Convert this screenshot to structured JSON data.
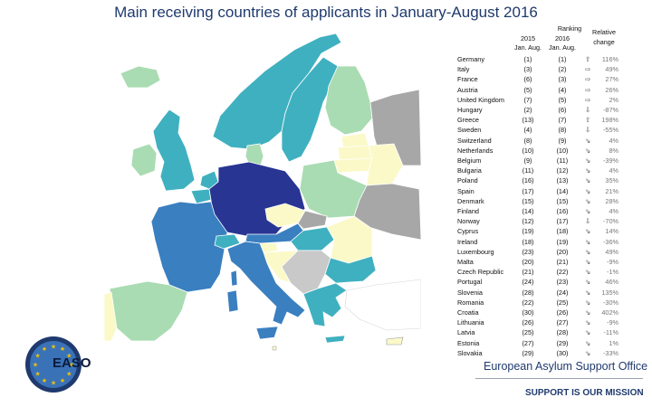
{
  "title": "Main receiving countries of applicants in January-August 2016",
  "ranking_header": {
    "ranking": "Ranking",
    "year_2015": "2015",
    "year_2016": "2016",
    "period_2015": "Jan. Aug.",
    "period_2016": "Jan. Aug.",
    "relative": "Relative",
    "change": "change"
  },
  "countries": [
    {
      "name": "Germany",
      "r2015": "(1)",
      "r2016": "(1)",
      "arrow": "⇧",
      "change": "116%"
    },
    {
      "name": "Italy",
      "r2015": "(3)",
      "r2016": "(2)",
      "arrow": "⇨",
      "change": "49%"
    },
    {
      "name": "France",
      "r2015": "(6)",
      "r2016": "(3)",
      "arrow": "⇨",
      "change": "27%"
    },
    {
      "name": "Austria",
      "r2015": "(5)",
      "r2016": "(4)",
      "arrow": "⇨",
      "change": "26%"
    },
    {
      "name": "United Kingdom",
      "r2015": "(7)",
      "r2016": "(5)",
      "arrow": "⇨",
      "change": "2%"
    },
    {
      "name": "Hungary",
      "r2015": "(2)",
      "r2016": "(6)",
      "arrow": "⇩",
      "change": "-87%"
    },
    {
      "name": "Greece",
      "r2015": "(13)",
      "r2016": "(7)",
      "arrow": "⇧",
      "change": "198%"
    },
    {
      "name": "Sweden",
      "r2015": "(4)",
      "r2016": "(8)",
      "arrow": "⇩",
      "change": "-55%"
    },
    {
      "name": "Switzerland",
      "r2015": "(8)",
      "r2016": "(9)",
      "arrow": "⇘",
      "change": "4%"
    },
    {
      "name": "Netherlands",
      "r2015": "(10)",
      "r2016": "(10)",
      "arrow": "⇘",
      "change": "8%"
    },
    {
      "name": "Belgium",
      "r2015": "(9)",
      "r2016": "(11)",
      "arrow": "⇘",
      "change": "-39%"
    },
    {
      "name": "Bulgaria",
      "r2015": "(11)",
      "r2016": "(12)",
      "arrow": "⇘",
      "change": "4%"
    },
    {
      "name": "Poland",
      "r2015": "(16)",
      "r2016": "(13)",
      "arrow": "⇘",
      "change": "35%"
    },
    {
      "name": "Spain",
      "r2015": "(17)",
      "r2016": "(14)",
      "arrow": "⇘",
      "change": "21%"
    },
    {
      "name": "Denmark",
      "r2015": "(15)",
      "r2016": "(15)",
      "arrow": "⇘",
      "change": "28%"
    },
    {
      "name": "Finland",
      "r2015": "(14)",
      "r2016": "(16)",
      "arrow": "⇘",
      "change": "4%"
    },
    {
      "name": "Norway",
      "r2015": "(12)",
      "r2016": "(17)",
      "arrow": "⇩",
      "change": "-70%"
    },
    {
      "name": "Cyprus",
      "r2015": "(19)",
      "r2016": "(18)",
      "arrow": "⇘",
      "change": "14%"
    },
    {
      "name": "Ireland",
      "r2015": "(18)",
      "r2016": "(19)",
      "arrow": "⇘",
      "change": "-36%"
    },
    {
      "name": "Luxembourg",
      "r2015": "(23)",
      "r2016": "(20)",
      "arrow": "⇘",
      "change": "49%"
    },
    {
      "name": "Malta",
      "r2015": "(20)",
      "r2016": "(21)",
      "arrow": "⇘",
      "change": "-9%"
    },
    {
      "name": "Czech Republic",
      "r2015": "(21)",
      "r2016": "(22)",
      "arrow": "⇘",
      "change": "-1%"
    },
    {
      "name": "Portugal",
      "r2015": "(24)",
      "r2016": "(23)",
      "arrow": "⇘",
      "change": "46%"
    },
    {
      "name": "Slovenia",
      "r2015": "(28)",
      "r2016": "(24)",
      "arrow": "⇘",
      "change": "135%"
    },
    {
      "name": "Romania",
      "r2015": "(22)",
      "r2016": "(25)",
      "arrow": "⇘",
      "change": "-30%"
    },
    {
      "name": "Croatia",
      "r2015": "(30)",
      "r2016": "(26)",
      "arrow": "⇘",
      "change": "402%"
    },
    {
      "name": "Lithuania",
      "r2015": "(26)",
      "r2016": "(27)",
      "arrow": "⇘",
      "change": "-9%"
    },
    {
      "name": "Latvia",
      "r2015": "(25)",
      "r2016": "(28)",
      "arrow": "⇘",
      "change": "-11%"
    },
    {
      "name": "Estonia",
      "r2015": "(27)",
      "r2016": "(29)",
      "arrow": "⇘",
      "change": "1%"
    },
    {
      "name": "Slovakia",
      "r2015": "(29)",
      "r2016": "(30)",
      "arrow": "⇘",
      "change": "-33%"
    }
  ],
  "logo": {
    "text": "EASO",
    "ring_color": "#1f3a6e",
    "star_color": "#f2c200"
  },
  "office": "European Asylum Support Office",
  "mission": "SUPPORT IS OUR MISSION",
  "colors": {
    "rank1": "#283593",
    "high": "#3a7fc0",
    "upper": "#3fb0c0",
    "mid": "#a9dcb2",
    "low": "#fbf9c8",
    "none": "#a7a7a7",
    "title": "#1f3a6e"
  }
}
